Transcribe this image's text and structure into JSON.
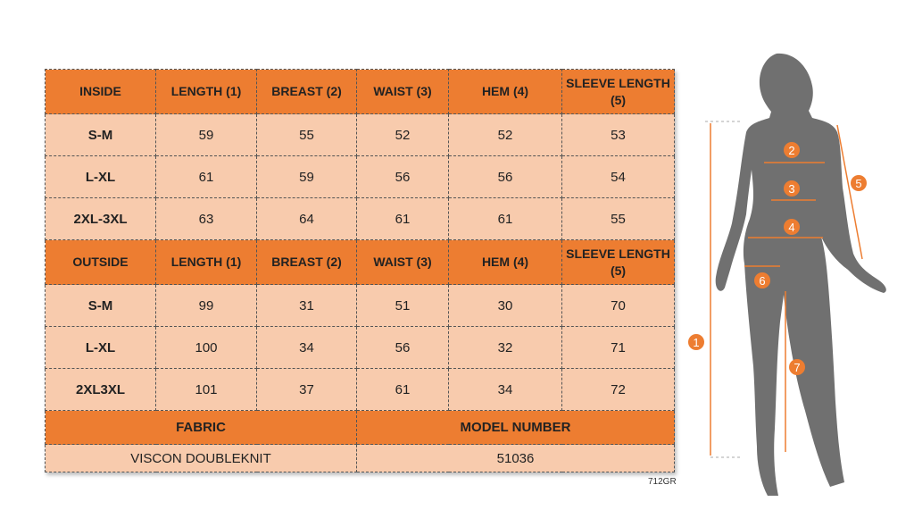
{
  "inside": {
    "headers": [
      "INSIDE",
      "LENGTH (1)",
      "BREAST (2)",
      "WAIST (3)",
      "HEM (4)",
      "SLEEVE LENGTH (5)"
    ],
    "rows": [
      [
        "S-M",
        "59",
        "55",
        "52",
        "52",
        "53"
      ],
      [
        "L-XL",
        "61",
        "59",
        "56",
        "56",
        "54"
      ],
      [
        "2XL-3XL",
        "63",
        "64",
        "61",
        "61",
        "55"
      ]
    ]
  },
  "outside": {
    "headers": [
      "OUTSIDE",
      "LENGTH (1)",
      "BREAST (2)",
      "WAIST (3)",
      "HEM (4)",
      "SLEEVE LENGTH (5)"
    ],
    "rows": [
      [
        "S-M",
        "99",
        "31",
        "51",
        "30",
        "70"
      ],
      [
        "L-XL",
        "100",
        "34",
        "56",
        "32",
        "71"
      ],
      [
        "2XL3XL",
        "101",
        "37",
        "61",
        "34",
        "72"
      ]
    ]
  },
  "footer": {
    "fabric_label": "FABRIC",
    "fabric_value": "VISCON DOUBLEKNIT",
    "model_label": "MODEL NUMBER",
    "model_value": "51036"
  },
  "code": "712GR",
  "figure": {
    "markers": [
      "1",
      "2",
      "3",
      "4",
      "5",
      "6",
      "7"
    ],
    "accent": "#ED7D31",
    "silhouette": "#707070"
  }
}
